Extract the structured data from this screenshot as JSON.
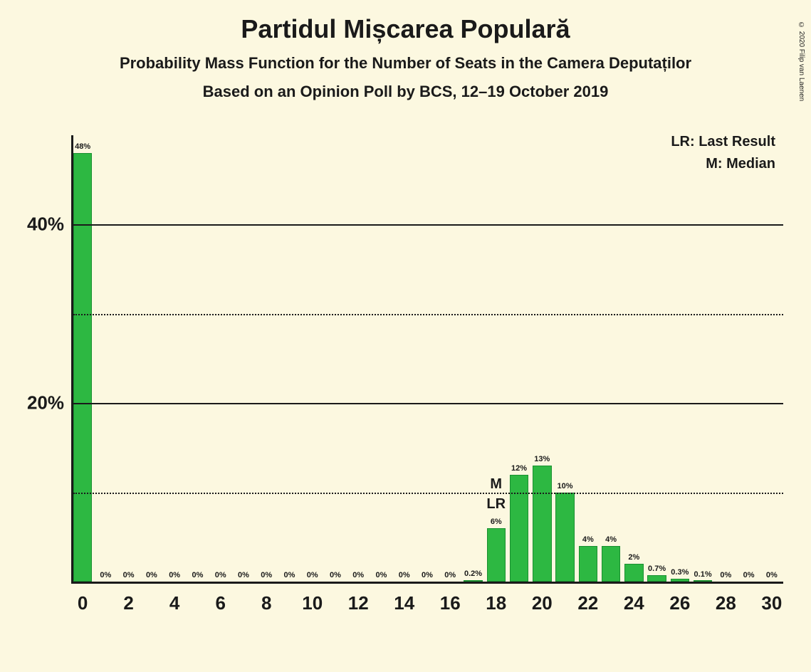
{
  "copyright": "© 2020 Filip van Laenen",
  "title": "Partidul Mișcarea Populară",
  "subtitle_line1": "Probability Mass Function for the Number of Seats in the Camera Deputaților",
  "subtitle_line2": "Based on an Opinion Poll by BCS, 12–19 October 2019",
  "legend": {
    "lr": "LR: Last Result",
    "m": "M: Median"
  },
  "chart": {
    "type": "bar",
    "background_color": "#fcf8e0",
    "bar_color": "#2db842",
    "text_color": "#1a1a1a",
    "x_values": [
      0,
      1,
      2,
      3,
      4,
      5,
      6,
      7,
      8,
      9,
      10,
      11,
      12,
      13,
      14,
      15,
      16,
      17,
      18,
      19,
      20,
      21,
      22,
      23,
      24,
      25,
      26,
      27,
      28,
      29,
      30
    ],
    "x_tick_positions": [
      0,
      2,
      4,
      6,
      8,
      10,
      12,
      14,
      16,
      18,
      20,
      22,
      24,
      26,
      28,
      30
    ],
    "y_max_percent": 50,
    "y_solid_gridlines_percent": [
      20,
      40
    ],
    "y_dotted_gridlines_percent": [
      10,
      30
    ],
    "y_tick_labels": [
      {
        "value": 20,
        "text": "20%"
      },
      {
        "value": 40,
        "text": "40%"
      }
    ],
    "bars": [
      {
        "x": 0,
        "value": 48,
        "label": "48%"
      },
      {
        "x": 1,
        "value": 0,
        "label": "0%"
      },
      {
        "x": 2,
        "value": 0,
        "label": "0%"
      },
      {
        "x": 3,
        "value": 0,
        "label": "0%"
      },
      {
        "x": 4,
        "value": 0,
        "label": "0%"
      },
      {
        "x": 5,
        "value": 0,
        "label": "0%"
      },
      {
        "x": 6,
        "value": 0,
        "label": "0%"
      },
      {
        "x": 7,
        "value": 0,
        "label": "0%"
      },
      {
        "x": 8,
        "value": 0,
        "label": "0%"
      },
      {
        "x": 9,
        "value": 0,
        "label": "0%"
      },
      {
        "x": 10,
        "value": 0,
        "label": "0%"
      },
      {
        "x": 11,
        "value": 0,
        "label": "0%"
      },
      {
        "x": 12,
        "value": 0,
        "label": "0%"
      },
      {
        "x": 13,
        "value": 0,
        "label": "0%"
      },
      {
        "x": 14,
        "value": 0,
        "label": "0%"
      },
      {
        "x": 15,
        "value": 0,
        "label": "0%"
      },
      {
        "x": 16,
        "value": 0,
        "label": "0%"
      },
      {
        "x": 17,
        "value": 0.2,
        "label": "0.2%"
      },
      {
        "x": 18,
        "value": 6,
        "label": "6%",
        "markers": [
          "M",
          "LR"
        ]
      },
      {
        "x": 19,
        "value": 12,
        "label": "12%"
      },
      {
        "x": 20,
        "value": 13,
        "label": "13%"
      },
      {
        "x": 21,
        "value": 10,
        "label": "10%"
      },
      {
        "x": 22,
        "value": 4,
        "label": "4%"
      },
      {
        "x": 23,
        "value": 4,
        "label": "4%"
      },
      {
        "x": 24,
        "value": 2,
        "label": "2%"
      },
      {
        "x": 25,
        "value": 0.7,
        "label": "0.7%"
      },
      {
        "x": 26,
        "value": 0.3,
        "label": "0.3%"
      },
      {
        "x": 27,
        "value": 0.1,
        "label": "0.1%"
      },
      {
        "x": 28,
        "value": 0,
        "label": "0%"
      },
      {
        "x": 29,
        "value": 0,
        "label": "0%"
      },
      {
        "x": 30,
        "value": 0,
        "label": "0%"
      }
    ]
  }
}
